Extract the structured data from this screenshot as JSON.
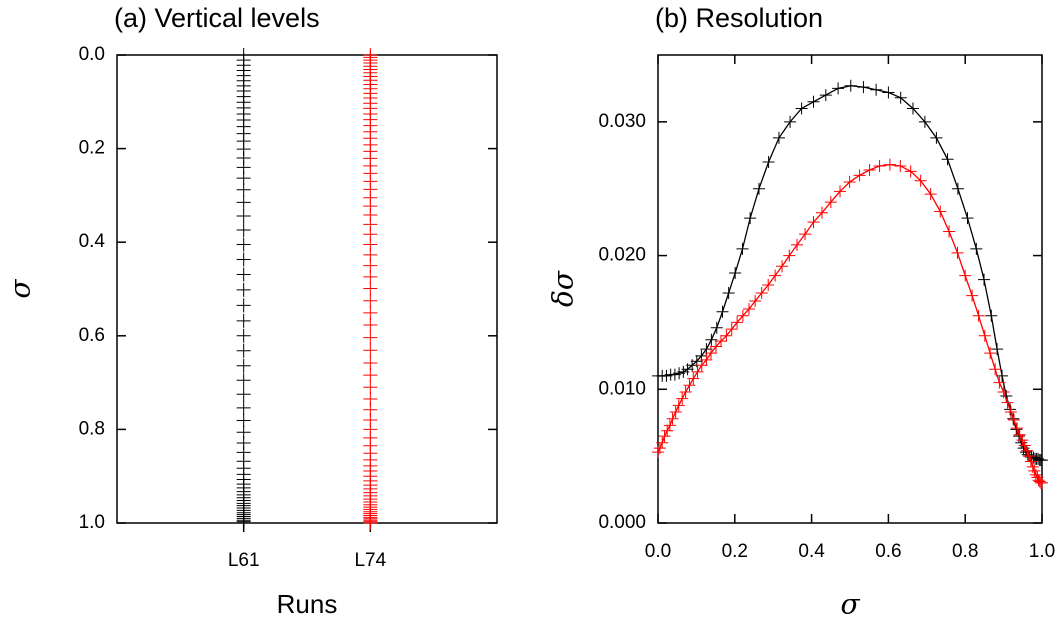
{
  "chart_data": [
    {
      "type": "strip",
      "title": "(a) Vertical levels",
      "x_label": "Runs",
      "y_label": "σ",
      "categories": [
        "L61",
        "L74"
      ],
      "y_inverted": true,
      "ylim": [
        0,
        1
      ],
      "yticks": [
        {
          "value": 0,
          "label": "0.0"
        },
        0.2,
        0.4,
        0.6,
        0.8,
        {
          "value": 1,
          "label": "1.0"
        }
      ],
      "series": [
        {
          "color": "#000000",
          "values": [
            0,
            0.011,
            0.022,
            0.033,
            0.044,
            0.055,
            0.066,
            0.077,
            0.089,
            0.101,
            0.113,
            0.126,
            0.139,
            0.153,
            0.168,
            0.184,
            0.201,
            0.22,
            0.24,
            0.263,
            0.288,
            0.315,
            0.344,
            0.374,
            0.405,
            0.437,
            0.469,
            0.502,
            0.535,
            0.568,
            0.6,
            0.632,
            0.664,
            0.695,
            0.725,
            0.754,
            0.781,
            0.806,
            0.829,
            0.849,
            0.868,
            0.883,
            0.896,
            0.907,
            0.917,
            0.925,
            0.933,
            0.94,
            0.946,
            0.952,
            0.958,
            0.963,
            0.968,
            0.973,
            0.978,
            0.982,
            0.986,
            0.99,
            0.994,
            0.997,
            1
          ]
        },
        {
          "color": "#ff0000",
          "values": [
            0,
            0.005,
            0.011,
            0.017,
            0.024,
            0.031,
            0.038,
            0.046,
            0.054,
            0.063,
            0.072,
            0.082,
            0.092,
            0.103,
            0.114,
            0.126,
            0.138,
            0.151,
            0.164,
            0.178,
            0.192,
            0.206,
            0.221,
            0.237,
            0.253,
            0.27,
            0.287,
            0.305,
            0.323,
            0.342,
            0.362,
            0.383,
            0.405,
            0.427,
            0.45,
            0.474,
            0.499,
            0.525,
            0.551,
            0.577,
            0.604,
            0.631,
            0.658,
            0.684,
            0.71,
            0.735,
            0.758,
            0.78,
            0.8,
            0.818,
            0.835,
            0.851,
            0.865,
            0.878,
            0.889,
            0.9,
            0.91,
            0.919,
            0.927,
            0.935,
            0.942,
            0.949,
            0.955,
            0.961,
            0.966,
            0.971,
            0.976,
            0.98,
            0.984,
            0.988,
            0.991,
            0.994,
            0.997,
            1
          ]
        }
      ]
    },
    {
      "type": "line",
      "title": "(b) Resolution",
      "x_label": "σ",
      "y_label": "δσ",
      "xlim": [
        0,
        1
      ],
      "xticks": [
        {
          "value": 0,
          "label": "0.0"
        },
        0.2,
        0.4,
        0.6,
        0.8,
        {
          "value": 1,
          "label": "1.0"
        }
      ],
      "ylim": [
        0,
        0.035
      ],
      "yticks": [
        {
          "value": 0,
          "label": "0.000"
        },
        {
          "value": 0.01,
          "label": "0.010"
        },
        {
          "value": 0.02,
          "label": "0.020"
        },
        {
          "value": 0.03,
          "label": "0.030"
        }
      ],
      "series": [
        {
          "color": "#000000",
          "x": [
            0,
            0.011,
            0.022,
            0.033,
            0.044,
            0.055,
            0.066,
            0.077,
            0.089,
            0.101,
            0.113,
            0.126,
            0.139,
            0.153,
            0.168,
            0.184,
            0.201,
            0.22,
            0.24,
            0.263,
            0.288,
            0.315,
            0.344,
            0.374,
            0.405,
            0.437,
            0.469,
            0.502,
            0.535,
            0.568,
            0.6,
            0.632,
            0.664,
            0.695,
            0.725,
            0.754,
            0.781,
            0.806,
            0.829,
            0.849,
            0.868,
            0.883,
            0.896,
            0.907,
            0.917,
            0.925,
            0.933,
            0.94,
            0.946,
            0.952,
            0.958,
            0.963,
            0.968,
            0.973,
            0.978,
            0.982,
            0.986,
            0.99,
            0.994,
            0.997,
            1
          ],
          "values": [
            0.011,
            0.011,
            0.011,
            0.0111,
            0.0111,
            0.0112,
            0.0113,
            0.0115,
            0.0118,
            0.0121,
            0.0125,
            0.013,
            0.0137,
            0.0146,
            0.0158,
            0.0172,
            0.0187,
            0.0205,
            0.0228,
            0.025,
            0.027,
            0.0288,
            0.03,
            0.031,
            0.0315,
            0.032,
            0.0325,
            0.0327,
            0.0326,
            0.0324,
            0.0322,
            0.0318,
            0.031,
            0.03,
            0.0288,
            0.0272,
            0.025,
            0.0228,
            0.0205,
            0.0182,
            0.0155,
            0.013,
            0.011,
            0.0095,
            0.0085,
            0.0078,
            0.007,
            0.0065,
            0.006,
            0.0056,
            0.0053,
            0.0051,
            0.005,
            0.005,
            0.0049,
            0.0048,
            0.0048,
            0.0048,
            0.0047,
            0.0047,
            0.0047
          ]
        },
        {
          "color": "#ff0000",
          "x": [
            0,
            0.005,
            0.011,
            0.017,
            0.024,
            0.031,
            0.038,
            0.046,
            0.054,
            0.063,
            0.072,
            0.082,
            0.092,
            0.103,
            0.114,
            0.126,
            0.138,
            0.151,
            0.164,
            0.178,
            0.192,
            0.206,
            0.221,
            0.237,
            0.253,
            0.27,
            0.287,
            0.305,
            0.323,
            0.342,
            0.362,
            0.383,
            0.405,
            0.427,
            0.45,
            0.474,
            0.499,
            0.525,
            0.551,
            0.577,
            0.604,
            0.631,
            0.658,
            0.684,
            0.71,
            0.735,
            0.758,
            0.78,
            0.8,
            0.818,
            0.835,
            0.851,
            0.865,
            0.878,
            0.889,
            0.9,
            0.91,
            0.919,
            0.927,
            0.935,
            0.942,
            0.949,
            0.955,
            0.961,
            0.966,
            0.971,
            0.976,
            0.98,
            0.984,
            0.988,
            0.991,
            0.994,
            0.997,
            1
          ],
          "values": [
            0.0053,
            0.0056,
            0.006,
            0.0065,
            0.0069,
            0.0073,
            0.0078,
            0.0083,
            0.0088,
            0.0093,
            0.0098,
            0.0103,
            0.0108,
            0.0113,
            0.0118,
            0.0122,
            0.0127,
            0.0132,
            0.0136,
            0.014,
            0.0145,
            0.015,
            0.0155,
            0.016,
            0.0166,
            0.0172,
            0.0178,
            0.0185,
            0.0192,
            0.02,
            0.0208,
            0.0216,
            0.0225,
            0.0232,
            0.024,
            0.0248,
            0.0255,
            0.026,
            0.0264,
            0.0267,
            0.0268,
            0.0267,
            0.0263,
            0.0256,
            0.0246,
            0.0233,
            0.0218,
            0.0202,
            0.0185,
            0.017,
            0.0155,
            0.014,
            0.0127,
            0.0115,
            0.0105,
            0.0098,
            0.009,
            0.0083,
            0.0077,
            0.0071,
            0.0066,
            0.0062,
            0.0058,
            0.0054,
            0.005,
            0.0046,
            0.0042,
            0.0039,
            0.0036,
            0.0034,
            0.0032,
            0.0031,
            0.003,
            0.003
          ]
        }
      ]
    }
  ]
}
